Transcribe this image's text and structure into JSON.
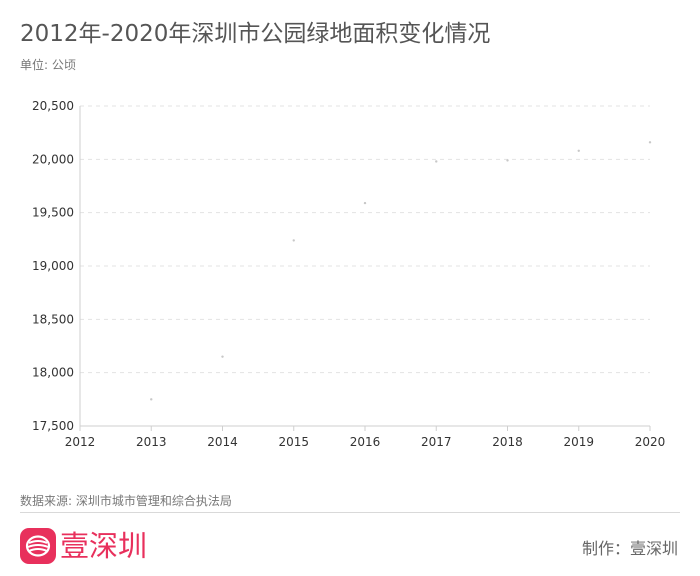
{
  "header": {
    "title": "2012年-2020年深圳市公园绿地面积变化情况",
    "unit": "单位: 公顷"
  },
  "footer": {
    "source": "数据来源: 深圳市城市管理和综合执法局",
    "brand": "壹深圳",
    "maker": "制作：壹深圳"
  },
  "colors": {
    "brand": "#e8305c",
    "point": "#c8c8c8",
    "grid": "#e3e3e3",
    "axis": "#cfcfcf",
    "text": "#333333"
  },
  "chart_data": {
    "type": "scatter",
    "title": "2012年-2020年深圳市公园绿地面积变化情况",
    "ylabel": "单位: 公顷",
    "xlabel": "",
    "x": [
      2013,
      2014,
      2015,
      2016,
      2017,
      2018,
      2019,
      2020
    ],
    "values": [
      17750,
      18150,
      19240,
      19590,
      19980,
      19990,
      20080,
      20160
    ],
    "xlim": [
      2012,
      2020
    ],
    "ylim": [
      17500,
      20500
    ],
    "x_ticks": [
      "2012",
      "2013",
      "2014",
      "2015",
      "2016",
      "2017",
      "2018",
      "2019",
      "2020"
    ],
    "y_ticks": [
      "17,500",
      "18,000",
      "18,500",
      "19,000",
      "19,500",
      "20,000",
      "20,500"
    ],
    "grid": true,
    "legend": "none"
  }
}
